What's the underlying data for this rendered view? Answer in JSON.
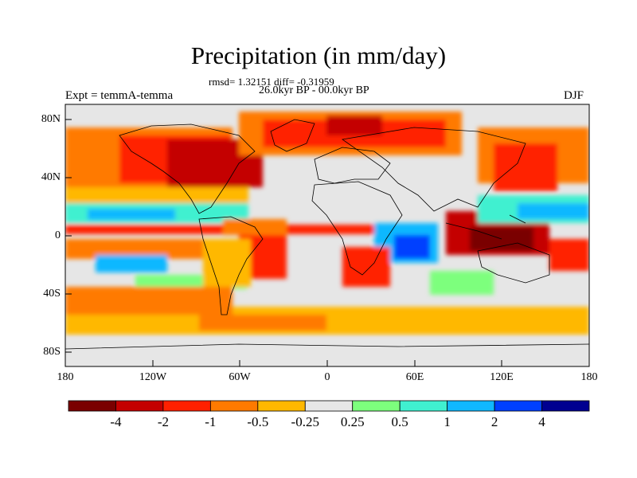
{
  "header": {
    "title": "Precipitation (in mm/day)",
    "stats": "rmsd= 1.32151 diff= -0.31959",
    "period": "26.0kyr BP - 00.0kyr BP",
    "experiment": "Expt = temmA-temma",
    "season": "DJF"
  },
  "axes": {
    "y_ticks": [
      "80N",
      "40N",
      "0",
      "40S",
      "80S"
    ],
    "x_ticks": [
      "180",
      "120W",
      "60W",
      "0",
      "60E",
      "120E",
      "180"
    ]
  },
  "colorbar": {
    "labels": [
      "-4",
      "-2",
      "-1",
      "-0.5",
      "-0.25",
      "0.25",
      "0.5",
      "1",
      "2",
      "4"
    ],
    "colors": [
      "#7a0000",
      "#c40000",
      "#ff2000",
      "#ff7a00",
      "#ffb800",
      "#e6e6e6",
      "#7dff7d",
      "#40f0d0",
      "#10b8ff",
      "#0040ff",
      "#000090"
    ]
  },
  "chart_data": {
    "type": "heatmap",
    "title": "Precipitation (in mm/day)",
    "subtitle": "26.0kyr BP - 00.0kyr BP",
    "xlim": [
      -180,
      180
    ],
    "ylim": [
      -90,
      90
    ],
    "levels": [
      -4,
      -2,
      -1,
      -0.5,
      -0.25,
      0.25,
      0.5,
      1,
      2,
      4
    ]
  }
}
